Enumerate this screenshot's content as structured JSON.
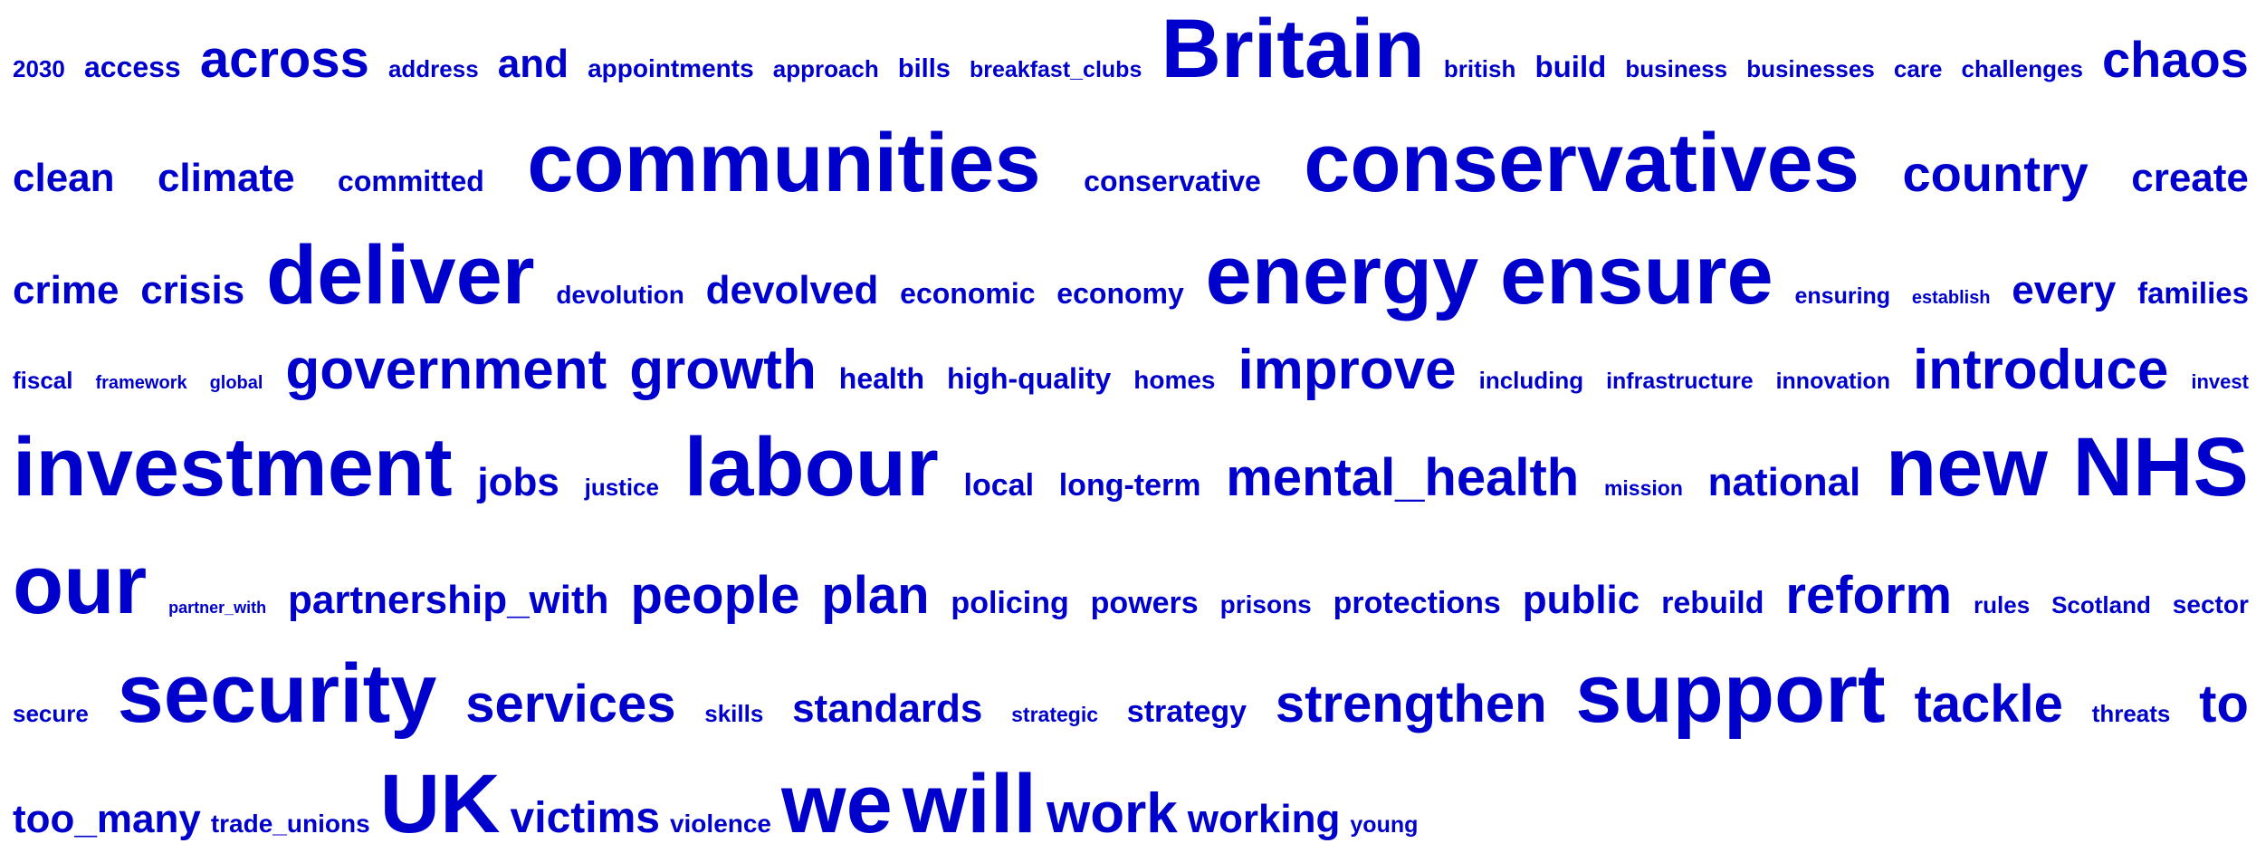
{
  "word_cloud": {
    "color": "#0000cc",
    "rows": [
      [
        {
          "t": "2030",
          "s": 26
        },
        {
          "t": "access",
          "s": 32
        },
        {
          "t": "across",
          "s": 58
        },
        {
          "t": "address",
          "s": 26
        },
        {
          "t": "and",
          "s": 44
        },
        {
          "t": "appointments",
          "s": 28
        },
        {
          "t": "approach",
          "s": 26
        },
        {
          "t": "bills",
          "s": 29
        },
        {
          "t": "breakfast_clubs",
          "s": 25
        },
        {
          "t": "Britain",
          "s": 92
        },
        {
          "t": "british",
          "s": 26
        },
        {
          "t": "build",
          "s": 33
        },
        {
          "t": "business",
          "s": 26
        },
        {
          "t": "businesses",
          "s": 26
        },
        {
          "t": "care",
          "s": 26
        },
        {
          "t": "challenges",
          "s": 26
        },
        {
          "t": "chaos",
          "s": 56
        }
      ],
      [
        {
          "t": "clean",
          "s": 44
        },
        {
          "t": "climate",
          "s": 44
        },
        {
          "t": "committed",
          "s": 32
        },
        {
          "t": "communities",
          "s": 92
        },
        {
          "t": "conservative",
          "s": 32
        },
        {
          "t": "conservatives",
          "s": 92
        },
        {
          "t": "country",
          "s": 56
        },
        {
          "t": "create",
          "s": 44
        }
      ],
      [
        {
          "t": "crime",
          "s": 44
        },
        {
          "t": "crisis",
          "s": 44
        },
        {
          "t": "deliver",
          "s": 92
        },
        {
          "t": "devolution",
          "s": 28
        },
        {
          "t": "devolved",
          "s": 44
        },
        {
          "t": "economic",
          "s": 32
        },
        {
          "t": "economy",
          "s": 32
        },
        {
          "t": "energy",
          "s": 92
        },
        {
          "t": "ensure",
          "s": 92
        },
        {
          "t": "ensuring",
          "s": 25
        },
        {
          "t": "establish",
          "s": 20
        },
        {
          "t": "every",
          "s": 44
        },
        {
          "t": "families",
          "s": 33
        }
      ],
      [
        {
          "t": "fiscal",
          "s": 26
        },
        {
          "t": "framework",
          "s": 20
        },
        {
          "t": "global",
          "s": 20
        },
        {
          "t": "government",
          "s": 62
        },
        {
          "t": "growth",
          "s": 62
        },
        {
          "t": "health",
          "s": 32
        },
        {
          "t": "high-quality",
          "s": 32
        },
        {
          "t": "homes",
          "s": 28
        },
        {
          "t": "improve",
          "s": 62
        },
        {
          "t": "including",
          "s": 26
        },
        {
          "t": "infrastructure",
          "s": 25
        },
        {
          "t": "innovation",
          "s": 25
        },
        {
          "t": "introduce",
          "s": 62
        },
        {
          "t": "invest",
          "s": 22
        }
      ],
      [
        {
          "t": "investment",
          "s": 92
        },
        {
          "t": "jobs",
          "s": 44
        },
        {
          "t": "justice",
          "s": 26
        },
        {
          "t": "labour",
          "s": 92
        },
        {
          "t": "local",
          "s": 34
        },
        {
          "t": "long-term",
          "s": 34
        },
        {
          "t": "mental_health",
          "s": 58
        },
        {
          "t": "mission",
          "s": 23
        },
        {
          "t": "national",
          "s": 44
        },
        {
          "t": "new",
          "s": 92
        },
        {
          "t": "NHS",
          "s": 92
        }
      ],
      [
        {
          "t": "our",
          "s": 92
        },
        {
          "t": "partner_with",
          "s": 18
        },
        {
          "t": "partnership_with",
          "s": 44
        },
        {
          "t": "people",
          "s": 58
        },
        {
          "t": "plan",
          "s": 58
        },
        {
          "t": "policing",
          "s": 34
        },
        {
          "t": "powers",
          "s": 34
        },
        {
          "t": "prisons",
          "s": 28
        },
        {
          "t": "protections",
          "s": 34
        },
        {
          "t": "public",
          "s": 44
        },
        {
          "t": "rebuild",
          "s": 34
        },
        {
          "t": "reform",
          "s": 58
        },
        {
          "t": "rules",
          "s": 26
        },
        {
          "t": "Scotland",
          "s": 26
        },
        {
          "t": "sector",
          "s": 28
        }
      ],
      [
        {
          "t": "secure",
          "s": 26
        },
        {
          "t": "security",
          "s": 92
        },
        {
          "t": "services",
          "s": 58
        },
        {
          "t": "skills",
          "s": 26
        },
        {
          "t": "standards",
          "s": 44
        },
        {
          "t": "strategic",
          "s": 23
        },
        {
          "t": "strategy",
          "s": 34
        },
        {
          "t": "strengthen",
          "s": 58
        },
        {
          "t": "support",
          "s": 92
        },
        {
          "t": "tackle",
          "s": 58
        },
        {
          "t": "threats",
          "s": 26
        },
        {
          "t": "to",
          "s": 58
        }
      ],
      [
        {
          "t": "too_many",
          "s": 44
        },
        {
          "t": "trade_unions",
          "s": 28
        },
        {
          "t": "UK",
          "s": 92
        },
        {
          "t": "victims",
          "s": 48
        },
        {
          "t": "violence",
          "s": 28
        },
        {
          "t": "we",
          "s": 92
        },
        {
          "t": "will",
          "s": 92
        },
        {
          "t": "work",
          "s": 62
        },
        {
          "t": "working",
          "s": 44
        },
        {
          "t": "young",
          "s": 25
        }
      ]
    ]
  }
}
